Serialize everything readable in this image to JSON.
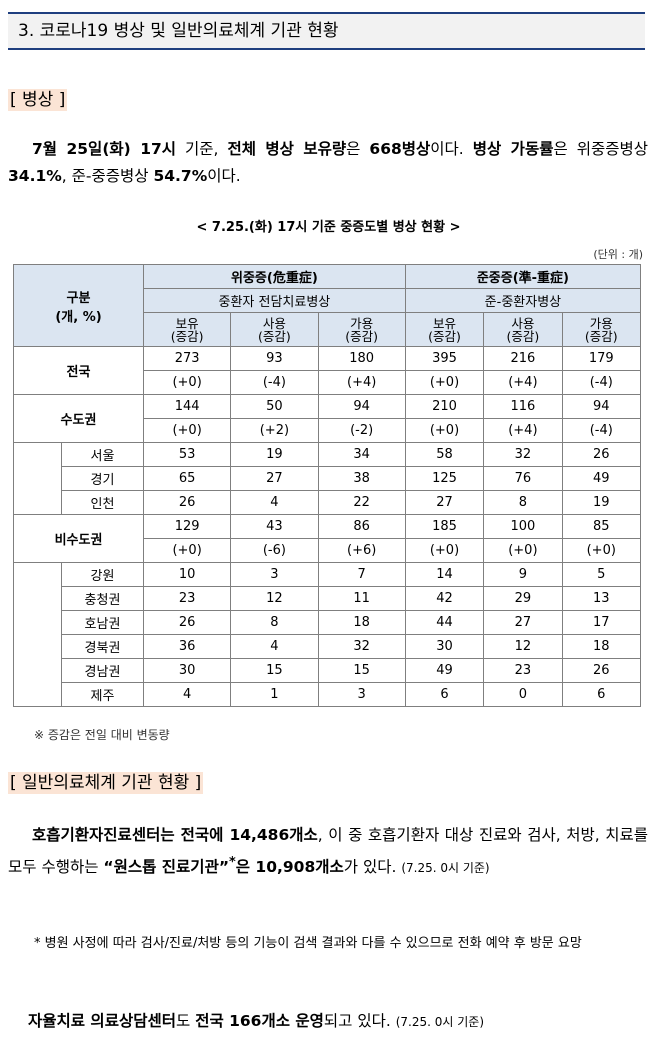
{
  "section_title": "3. 코로나19 병상 및 일반의료체계 기관 현황",
  "beds": {
    "title": "[ 병상 ]",
    "para_parts": {
      "p1": "7월 25일(화) 17시",
      "p2": " 기준, ",
      "p3": "전체 병상 보유량",
      "p4": "은 ",
      "p5": "668병상",
      "p6": "이다. ",
      "p7": "병상 가동률",
      "p8": "은 위중증병상 ",
      "p9": "34.1%",
      "p10": ", 준-중증병상 ",
      "p11": "54.7%",
      "p12": "이다."
    },
    "caption": "< 7.25.(화) 17시 기준 중증도별 병상 현황 >",
    "unit": "(단위 : 개)",
    "table": {
      "gubun": "구분",
      "gubun_unit": "(개, %)",
      "group1": "위중증(危重症)",
      "group1_sub": "중환자 전담치료병상",
      "group2": "준중증(準-重症)",
      "group2_sub": "준-중환자병상",
      "col_top": [
        "보유",
        "사용",
        "가용",
        "보유",
        "사용",
        "가용"
      ],
      "col_bottom": [
        "(증감)",
        "(증감)",
        "(증감)",
        "(증감)",
        "(증감)",
        "(증감)"
      ],
      "national": {
        "label": "전국",
        "values": [
          "273",
          "93",
          "180",
          "395",
          "216",
          "179"
        ],
        "deltas": [
          "(+0)",
          "(-4)",
          "(+4)",
          "(+0)",
          "(+4)",
          "(-4)"
        ]
      },
      "metro": {
        "label": "수도권",
        "values": [
          "144",
          "50",
          "94",
          "210",
          "116",
          "94"
        ],
        "deltas": [
          "(+0)",
          "(+2)",
          "(-2)",
          "(+0)",
          "(+4)",
          "(-4)"
        ]
      },
      "metro_rows": [
        {
          "name": "서울",
          "values": [
            "53",
            "19",
            "34",
            "58",
            "32",
            "26"
          ]
        },
        {
          "name": "경기",
          "values": [
            "65",
            "27",
            "38",
            "125",
            "76",
            "49"
          ]
        },
        {
          "name": "인천",
          "values": [
            "26",
            "4",
            "22",
            "27",
            "8",
            "19"
          ]
        }
      ],
      "nonmetro": {
        "label": "비수도권",
        "values": [
          "129",
          "43",
          "86",
          "185",
          "100",
          "85"
        ],
        "deltas": [
          "(+0)",
          "(-6)",
          "(+6)",
          "(+0)",
          "(+0)",
          "(+0)"
        ]
      },
      "nonmetro_rows": [
        {
          "name": "강원",
          "values": [
            "10",
            "3",
            "7",
            "14",
            "9",
            "5"
          ]
        },
        {
          "name": "충청권",
          "values": [
            "23",
            "12",
            "11",
            "42",
            "29",
            "13"
          ]
        },
        {
          "name": "호남권",
          "values": [
            "26",
            "8",
            "18",
            "44",
            "27",
            "17"
          ]
        },
        {
          "name": "경북권",
          "values": [
            "36",
            "4",
            "32",
            "30",
            "12",
            "18"
          ]
        },
        {
          "name": "경남권",
          "values": [
            "30",
            "15",
            "15",
            "49",
            "23",
            "26"
          ]
        },
        {
          "name": "제주",
          "values": [
            "4",
            "1",
            "3",
            "6",
            "0",
            "6"
          ]
        }
      ]
    },
    "note": "※ 증감은 전일 대비 변동량"
  },
  "general": {
    "title": "[ 일반의료체계 기관 현황 ]",
    "p_parts": {
      "a1": "호흡기환자진료센터는 전국에 14,486개소",
      "a2": ", 이 중 호흡기환자 대상 진료와 검사, 처방, 치료를 모두 수행하는 ",
      "a3": "“원스톱 진료기관”",
      "a4": "*",
      "a5": "은 10,908개소",
      "a6": "가 있다. ",
      "a7": "(7.25. 0시 기준)"
    },
    "footnote": "* 병원 사정에 따라 검사/진료/처방 등의 기능이 검색 결과와 다를 수 있으므로 전화 예약 후 방문 요망",
    "p2_parts": {
      "b1": "자율치료 의료상담센터",
      "b2": "도 ",
      "b3": "전국 166개소 운영",
      "b4": "되고 있다. ",
      "b5": "(7.25. 0시 기준)"
    }
  }
}
